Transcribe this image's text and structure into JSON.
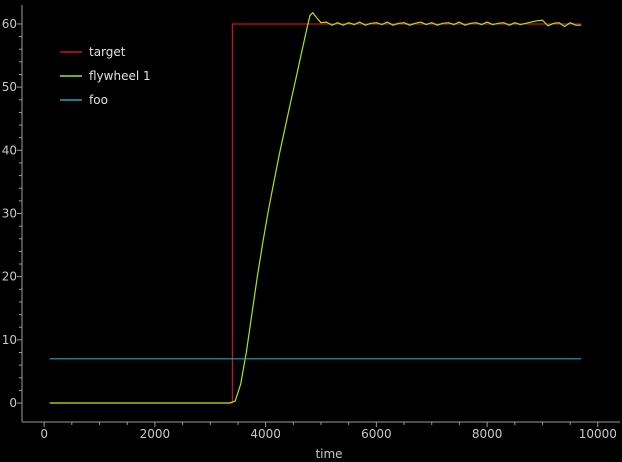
{
  "chart_data": {
    "type": "line",
    "title": "",
    "xlabel": "time",
    "ylabel": "",
    "xlim": [
      -400,
      10400
    ],
    "ylim": [
      -3,
      63
    ],
    "xticks": [
      0,
      2000,
      4000,
      6000,
      8000,
      10000
    ],
    "yticks": [
      0,
      10,
      20,
      30,
      40,
      50,
      60
    ],
    "x_tick_labels": [
      "0",
      "2000",
      "4000",
      "6000",
      "8000",
      "10000"
    ],
    "y_tick_labels": [
      "0",
      "10",
      "20",
      "30",
      "40",
      "50",
      "60"
    ],
    "grid": false,
    "legend_position": "top-left",
    "background": "#000000",
    "axis_color": "#9a9a9a",
    "series": [
      {
        "name": "target",
        "color": "#c8141e",
        "points": [
          [
            100,
            0
          ],
          [
            3400,
            0
          ],
          [
            3400,
            60
          ],
          [
            9700,
            60
          ]
        ]
      },
      {
        "name": "flywheel 1",
        "color": "#a6e61e",
        "points": [
          [
            100,
            0
          ],
          [
            3350,
            0
          ],
          [
            3450,
            0.3
          ],
          [
            3550,
            3
          ],
          [
            3650,
            8
          ],
          [
            3750,
            14
          ],
          [
            3850,
            20
          ],
          [
            3950,
            25.5
          ],
          [
            4050,
            30.5
          ],
          [
            4150,
            35
          ],
          [
            4250,
            39.5
          ],
          [
            4350,
            43.5
          ],
          [
            4450,
            47.5
          ],
          [
            4550,
            51.5
          ],
          [
            4650,
            55.5
          ],
          [
            4750,
            59.5
          ],
          [
            4800,
            61.3
          ],
          [
            4850,
            61.8
          ],
          [
            4900,
            61.2
          ],
          [
            5000,
            60.2
          ],
          [
            5100,
            60.3
          ],
          [
            5200,
            59.8
          ],
          [
            5300,
            60.2
          ],
          [
            5400,
            59.8
          ],
          [
            5500,
            60.2
          ],
          [
            5600,
            59.9
          ],
          [
            5700,
            60.3
          ],
          [
            5800,
            59.8
          ],
          [
            5900,
            60.1
          ],
          [
            6000,
            60.2
          ],
          [
            6100,
            59.9
          ],
          [
            6200,
            60.3
          ],
          [
            6300,
            59.8
          ],
          [
            6400,
            60.1
          ],
          [
            6500,
            60.2
          ],
          [
            6600,
            59.8
          ],
          [
            6700,
            60.1
          ],
          [
            6800,
            60.3
          ],
          [
            6900,
            59.9
          ],
          [
            7000,
            60.2
          ],
          [
            7100,
            59.8
          ],
          [
            7200,
            60.1
          ],
          [
            7300,
            60.2
          ],
          [
            7400,
            59.9
          ],
          [
            7500,
            60.3
          ],
          [
            7600,
            59.8
          ],
          [
            7700,
            60.1
          ],
          [
            7800,
            60.2
          ],
          [
            7900,
            59.9
          ],
          [
            8000,
            60.3
          ],
          [
            8100,
            59.9
          ],
          [
            8200,
            60.1
          ],
          [
            8300,
            60.2
          ],
          [
            8400,
            59.8
          ],
          [
            8500,
            60.2
          ],
          [
            8600,
            59.9
          ],
          [
            8700,
            60.1
          ],
          [
            8800,
            60.3
          ],
          [
            8900,
            60.5
          ],
          [
            9000,
            60.6
          ],
          [
            9100,
            59.7
          ],
          [
            9200,
            60.1
          ],
          [
            9300,
            60.2
          ],
          [
            9400,
            59.6
          ],
          [
            9500,
            60.2
          ],
          [
            9600,
            59.8
          ],
          [
            9700,
            59.8
          ]
        ]
      },
      {
        "name": "foo",
        "color": "#1aa7b8",
        "points": [
          [
            100,
            7
          ],
          [
            9700,
            7
          ]
        ]
      }
    ]
  }
}
